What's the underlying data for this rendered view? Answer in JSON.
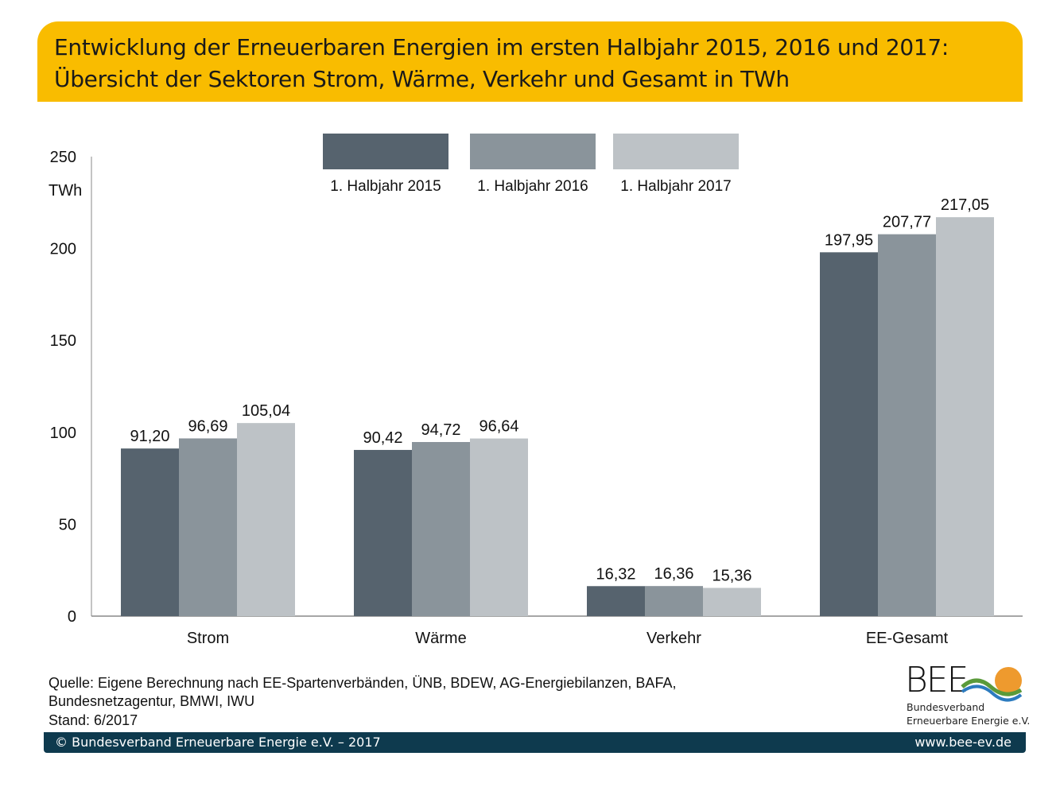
{
  "title": {
    "line1": "Entwicklung der Erneuerbaren Energien im ersten Halbjahr 2015, 2016 und 2017:",
    "line2": "Übersicht der Sektoren Strom, Wärme, Verkehr und Gesamt in TWh"
  },
  "chart_data": {
    "type": "bar",
    "categories": [
      "Strom",
      "Wärme",
      "Verkehr",
      "EE-Gesamt"
    ],
    "series": [
      {
        "name": "1. Halbjahr 2015",
        "color": "#56636E",
        "values": [
          91.2,
          90.42,
          16.32,
          197.95
        ],
        "labels": [
          "91,20",
          "90,42",
          "16,32",
          "197,95"
        ]
      },
      {
        "name": "1. Halbjahr 2016",
        "color": "#8A949B",
        "values": [
          96.69,
          94.72,
          16.36,
          207.77
        ],
        "labels": [
          "96,69",
          "94,72",
          "16,36",
          "207,77"
        ]
      },
      {
        "name": "1. Halbjahr 2017",
        "color": "#BDC2C6",
        "values": [
          105.04,
          96.64,
          15.36,
          217.05
        ],
        "labels": [
          "105,04",
          "96,64",
          "15,36",
          "217,05"
        ]
      }
    ],
    "yunit": "TWh",
    "ylim": [
      0,
      250
    ],
    "yticks": [
      0,
      50,
      100,
      150,
      200,
      250
    ],
    "grid": false,
    "legend_position": "top"
  },
  "source": {
    "line1": "Quelle: Eigene Berechnung nach EE-Spartenverbänden, ÜNB, BDEW, AG-Energiebilanzen, BAFA,",
    "line2": "Bundesnetzagentur, BMWI, IWU",
    "line3": "Stand: 6/2017"
  },
  "logo": {
    "text": "BEE",
    "line1": "Bundesverband",
    "line2": "Erneuerbare Energie e.V."
  },
  "footer": {
    "copyright": "© Bundesverband Erneuerbare Energie e.V. – 2017",
    "url": "www.bee-ev.de"
  },
  "colors": {
    "title_bg": "#F9BC00",
    "footer_bg": "#0E3A4E"
  }
}
